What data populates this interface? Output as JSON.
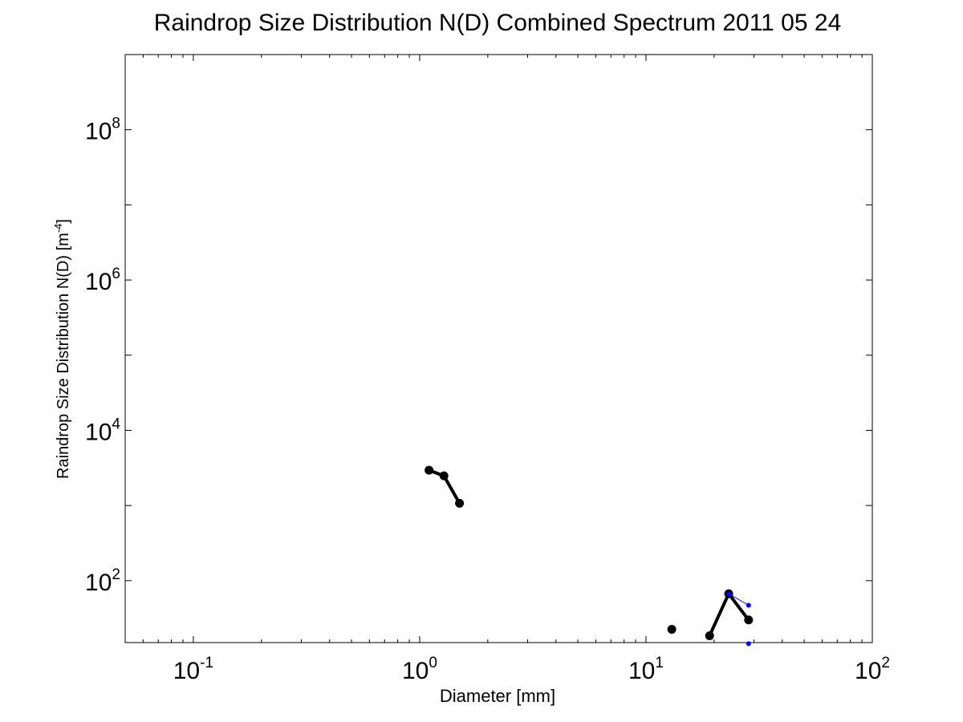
{
  "chart_data": {
    "type": "scatter",
    "title": "Raindrop Size Distribution N(D) Combined Spectrum 2011 05 24",
    "xlabel": "Diameter [mm]",
    "ylabel": {
      "text": "Raindrop Size Distribution N(D) [m",
      "exponent": "-4",
      "close": "]"
    },
    "xscale": "log",
    "yscale": "log",
    "xlim": [
      0.05,
      100
    ],
    "ylim": [
      15,
      1000000000
    ],
    "grid": false,
    "x_ticks": [
      {
        "value": 0.1,
        "base": "10",
        "exponent": "-1"
      },
      {
        "value": 1,
        "base": "10",
        "exponent": "0"
      },
      {
        "value": 10,
        "base": "10",
        "exponent": "1"
      },
      {
        "value": 100,
        "base": "10",
        "exponent": "2"
      }
    ],
    "y_ticks": [
      {
        "value": 100,
        "base": "10",
        "exponent": "2"
      },
      {
        "value": 10000,
        "base": "10",
        "exponent": "4"
      },
      {
        "value": 1000000,
        "base": "10",
        "exponent": "6"
      },
      {
        "value": 100000000,
        "base": "10",
        "exponent": "8"
      }
    ],
    "series": [
      {
        "style": "thick-line-markers",
        "color": "#000000",
        "segments": [
          [
            {
              "x": 1.1,
              "y": 2950
            },
            {
              "x": 1.28,
              "y": 2480
            },
            {
              "x": 1.5,
              "y": 1070
            }
          ],
          [
            {
              "x": 13.0,
              "y": 22.5
            }
          ],
          [
            {
              "x": 19.1,
              "y": 18.5
            },
            {
              "x": 23.2,
              "y": 67
            },
            {
              "x": 28.4,
              "y": 30
            }
          ]
        ]
      },
      {
        "style": "thin-line-markers",
        "color": "#0000ff",
        "segments": [
          [
            {
              "x": 23.2,
              "y": 67
            },
            {
              "x": 28.4,
              "y": 47
            }
          ],
          [
            {
              "x": 28.4,
              "y": 14.5
            }
          ]
        ]
      }
    ]
  }
}
